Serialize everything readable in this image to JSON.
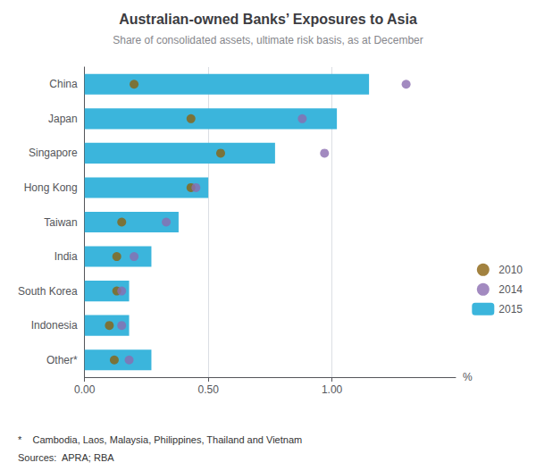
{
  "chart_data": {
    "type": "bar",
    "orientation": "horizontal",
    "title": "Australian-owned Banks’ Exposures to Asia",
    "subtitle": "Share of consolidated assets, ultimate risk basis, as at December",
    "categories": [
      "China",
      "Japan",
      "Singapore",
      "Hong Kong",
      "Taiwan",
      "India",
      "South Korea",
      "Indonesia",
      "Other*"
    ],
    "series": [
      {
        "name": "2010",
        "type": "scatter",
        "marker": "circle",
        "color": "#8B6310",
        "values": [
          0.2,
          0.43,
          0.55,
          0.43,
          0.15,
          0.13,
          0.13,
          0.1,
          0.12
        ]
      },
      {
        "name": "2014",
        "type": "scatter",
        "marker": "circle",
        "color": "#8B6DB0",
        "values": [
          1.3,
          0.88,
          0.97,
          0.45,
          0.33,
          0.2,
          0.15,
          0.15,
          0.18
        ]
      },
      {
        "name": "2015",
        "type": "bar",
        "color": "#3bb5dc",
        "values": [
          1.15,
          1.02,
          0.77,
          0.5,
          0.38,
          0.27,
          0.18,
          0.18,
          0.27
        ]
      }
    ],
    "xlabel": "%",
    "xlim": [
      0,
      1.5
    ],
    "xticks": [
      {
        "value": 0.0,
        "label": "0.00"
      },
      {
        "value": 0.5,
        "label": "0.50"
      },
      {
        "value": 1.0,
        "label": "1.00"
      }
    ],
    "grid": true,
    "legend": "right",
    "footnote": "*    Cambodia, Laos, Malaysia, Philippines, Thailand and Vietnam",
    "sources": "Sources:  APRA; RBA"
  }
}
